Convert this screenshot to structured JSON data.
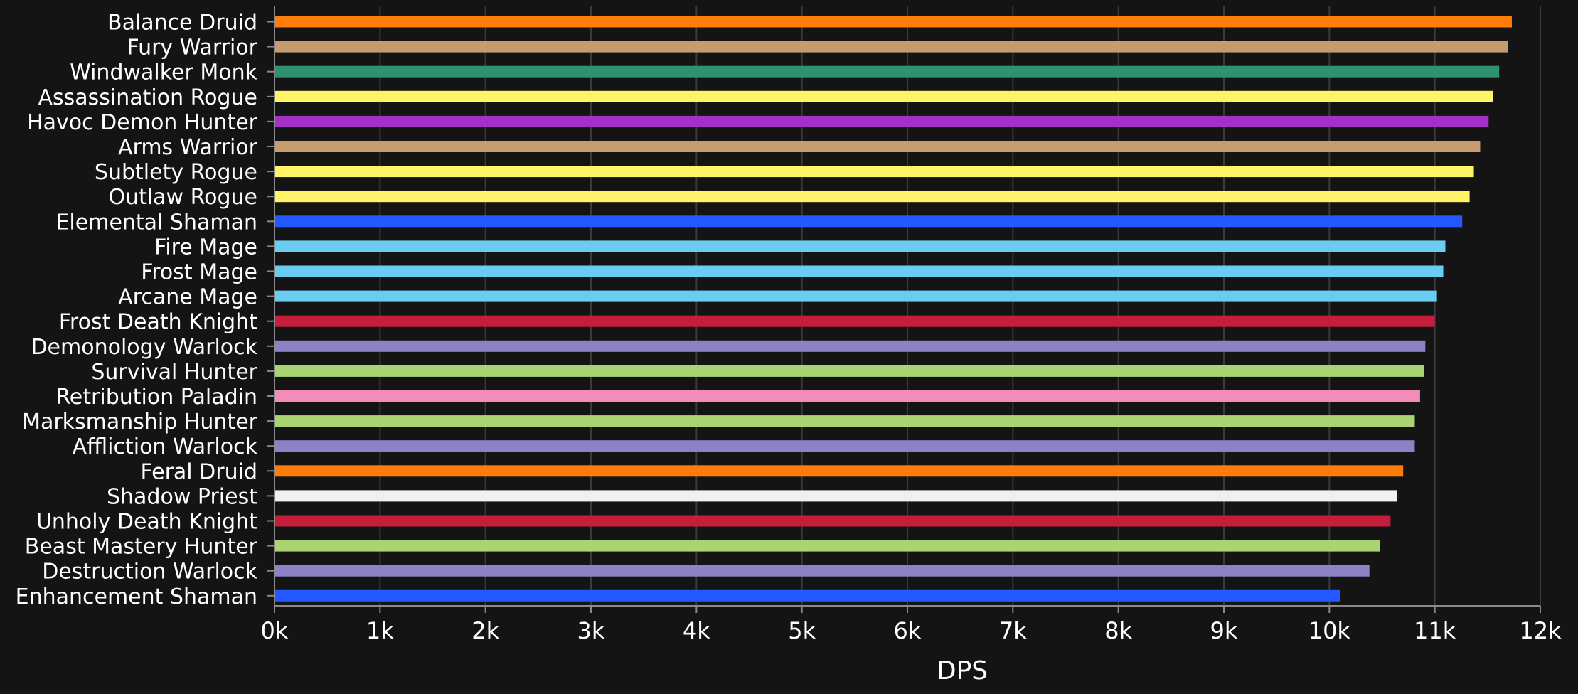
{
  "chart_data": {
    "type": "bar",
    "orientation": "horizontal",
    "title": "",
    "xlabel": "DPS",
    "ylabel": "",
    "xlim": [
      0,
      12000
    ],
    "grid": true,
    "x_ticks": [
      "0k",
      "1k",
      "2k",
      "3k",
      "4k",
      "5k",
      "6k",
      "7k",
      "8k",
      "9k",
      "10k",
      "11k",
      "12k"
    ],
    "categories": [
      "Balance Druid",
      "Fury Warrior",
      "Windwalker Monk",
      "Assassination Rogue",
      "Havoc Demon Hunter",
      "Arms Warrior",
      "Subtlety Rogue",
      "Outlaw Rogue",
      "Elemental Shaman",
      "Fire Mage",
      "Frost Mage",
      "Arcane Mage",
      "Frost Death Knight",
      "Demonology Warlock",
      "Survival Hunter",
      "Retribution Paladin",
      "Marksmanship Hunter",
      "Affliction Warlock",
      "Feral Druid",
      "Shadow Priest",
      "Unholy Death Knight",
      "Beast Mastery Hunter",
      "Destruction Warlock",
      "Enhancement Shaman"
    ],
    "values": [
      11730,
      11690,
      11610,
      11550,
      11510,
      11430,
      11370,
      11330,
      11260,
      11100,
      11080,
      11020,
      11000,
      10910,
      10900,
      10860,
      10810,
      10810,
      10700,
      10640,
      10580,
      10480,
      10380,
      10100
    ],
    "colors": [
      "#FF7C0A",
      "#C69B6D",
      "#2E9270",
      "#FFF468",
      "#A330C9",
      "#C69B6D",
      "#FFF468",
      "#FFF468",
      "#2459FF",
      "#69CCF0",
      "#69CCF0",
      "#69CCF0",
      "#C41E3A",
      "#8C82C6",
      "#AAD372",
      "#F48CBA",
      "#AAD372",
      "#8C82C6",
      "#FF7C0A",
      "#F0F0F0",
      "#C41E3A",
      "#AAD372",
      "#8C82C6",
      "#2459FF"
    ]
  },
  "style": {
    "background": "#141414",
    "grid_color": "#3A3A3A",
    "axis_color": "#8A8A8A",
    "text_color": "#FFFFFF"
  }
}
